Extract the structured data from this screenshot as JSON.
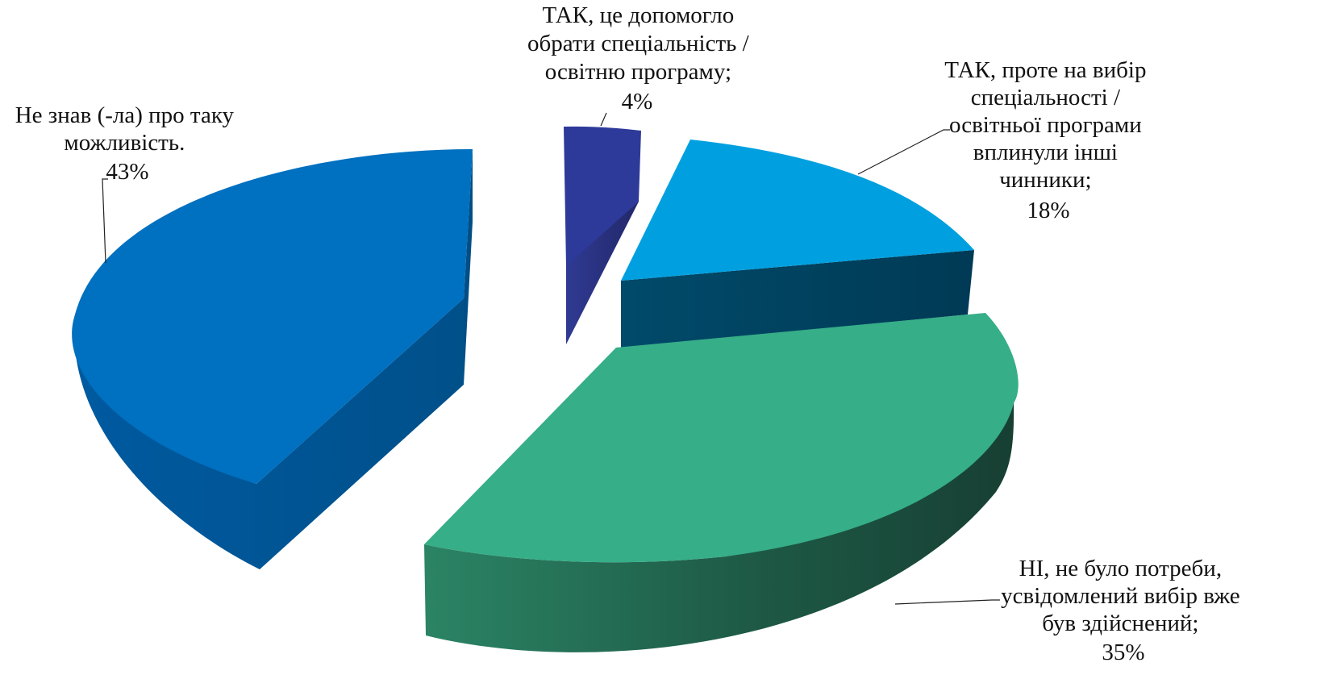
{
  "chart_data": {
    "type": "pie",
    "style": "3d-exploded",
    "title": "",
    "slices": [
      {
        "label_lines": [
          "ТАК, це допомогло",
          "обрати спеціальність /",
          "освітню програму;"
        ],
        "value_label": "4%",
        "value": 4,
        "color": "#2E3A9A"
      },
      {
        "label_lines": [
          "ТАК, проте на вибір",
          "спеціальності /",
          "освітньої програми",
          "вплинули інші",
          "чинники;"
        ],
        "value_label": "18%",
        "value": 18,
        "color": "#00A0E0"
      },
      {
        "label_lines": [
          "НІ, не було потреби,",
          "усвідомлений вибір вже",
          "був здійснений;"
        ],
        "value_label": "35%",
        "value": 35,
        "color": "#36AE88"
      },
      {
        "label_lines": [
          "Не знав (-ла) про таку",
          "можливість."
        ],
        "value_label": "43%",
        "value": 43,
        "color": "#0070C0"
      }
    ]
  }
}
